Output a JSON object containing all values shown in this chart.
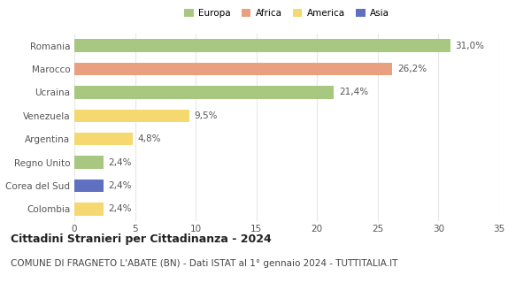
{
  "countries": [
    "Romania",
    "Marocco",
    "Ucraina",
    "Venezuela",
    "Argentina",
    "Regno Unito",
    "Corea del Sud",
    "Colombia"
  ],
  "values": [
    31.0,
    26.2,
    21.4,
    9.5,
    4.8,
    2.4,
    2.4,
    2.4
  ],
  "labels": [
    "31,0%",
    "26,2%",
    "21,4%",
    "9,5%",
    "4,8%",
    "2,4%",
    "2,4%",
    "2,4%"
  ],
  "continents": [
    "Europa",
    "Africa",
    "Europa",
    "America",
    "America",
    "Europa",
    "Asia",
    "America"
  ],
  "bar_colors": [
    "#a8c882",
    "#e8a080",
    "#a8c882",
    "#f5d870",
    "#f5d870",
    "#a8c882",
    "#6070c0",
    "#f5d870"
  ],
  "legend_labels": [
    "Europa",
    "Africa",
    "America",
    "Asia"
  ],
  "legend_colors": [
    "#a8c882",
    "#e8a080",
    "#f5d870",
    "#6070c0"
  ],
  "xlim": [
    0,
    35
  ],
  "xticks": [
    0,
    5,
    10,
    15,
    20,
    25,
    30,
    35
  ],
  "title": "Cittadini Stranieri per Cittadinanza - 2024",
  "subtitle": "COMUNE DI FRAGNETO L'ABATE (BN) - Dati ISTAT al 1° gennaio 2024 - TUTTITALIA.IT",
  "title_fontsize": 9,
  "subtitle_fontsize": 7.5,
  "label_fontsize": 7.5,
  "tick_fontsize": 7.5,
  "bar_height": 0.55,
  "grid_color": "#e8e8e8",
  "background_color": "#ffffff"
}
